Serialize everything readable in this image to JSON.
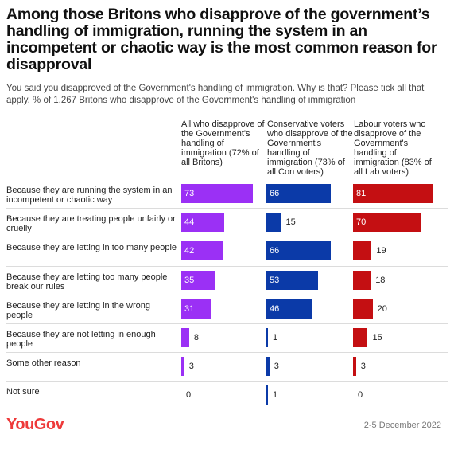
{
  "title": "Among those Britons who disapprove of the government’s handling of immigration, running the system in an incompetent or chaotic way is the most common reason for disapproval",
  "subtitle": "You said you disapproved of the Government's handling of immigration. Why is that? Please tick all that apply. % of 1,267 Britons who disapprove of the Government's handling of immigration",
  "brand": "YouGov",
  "date": "2-5 December 2022",
  "colors": {
    "all": "#9b30f5",
    "con": "#0b3aa8",
    "lab": "#c40f12",
    "brand": "#ee3a3a"
  },
  "chart_data": {
    "type": "bar",
    "orientation": "horizontal",
    "categories": [
      "Because they are running the system in an incompetent or chaotic way",
      "Because they are treating people unfairly or cruelly",
      "Because they are letting in too many people",
      "Because they are letting too many people break our rules",
      "Because they are letting in the wrong people",
      "Because they are not letting in enough people",
      "Some other reason",
      "Not sure"
    ],
    "series": [
      {
        "name": "All who disapprove of the Government's handling of immigration (72% of all Britons)",
        "color": "#9b30f5",
        "values": [
          73,
          44,
          42,
          35,
          31,
          8,
          3,
          0
        ]
      },
      {
        "name": "Conservative voters who disapprove of the Government's handling of immigration (73% of all Con voters)",
        "color": "#0b3aa8",
        "values": [
          66,
          15,
          66,
          53,
          46,
          1,
          3,
          1
        ]
      },
      {
        "name": "Labour voters who disapprove of the Government's handling of immigration (83% of all Lab voters)",
        "color": "#c40f12",
        "values": [
          81,
          70,
          19,
          18,
          20,
          15,
          3,
          0
        ]
      }
    ],
    "xlim": [
      0,
      81
    ]
  }
}
